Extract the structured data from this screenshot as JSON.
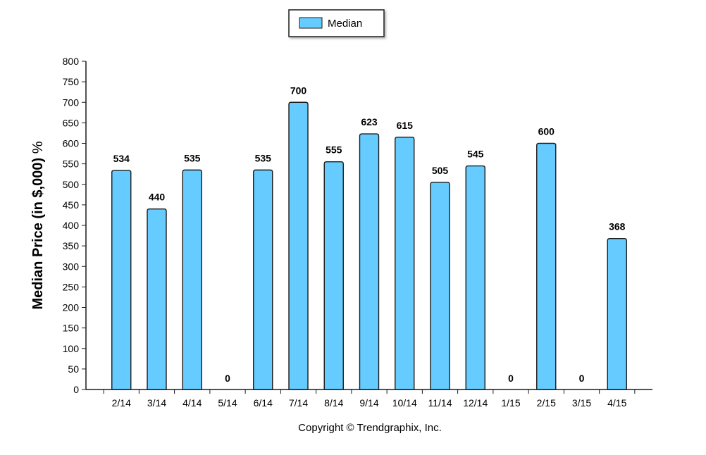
{
  "chart_data": {
    "type": "bar",
    "categories": [
      "2/14",
      "3/14",
      "4/14",
      "5/14",
      "6/14",
      "7/14",
      "8/14",
      "9/14",
      "10/14",
      "11/14",
      "12/14",
      "1/15",
      "2/15",
      "3/15",
      "4/15"
    ],
    "series": [
      {
        "name": "Median",
        "values": [
          534,
          440,
          535,
          0,
          535,
          700,
          555,
          623,
          615,
          505,
          545,
          0,
          600,
          0,
          368
        ]
      }
    ],
    "ylabel": "Median Price (in $,000)",
    "ylabel_unit": "%",
    "ylim": [
      0,
      800
    ],
    "yticks": [
      0,
      50,
      100,
      150,
      200,
      250,
      300,
      350,
      400,
      450,
      500,
      550,
      600,
      650,
      700,
      750,
      800
    ],
    "grid": false,
    "legend": {
      "position": "top-center",
      "label": "Median"
    },
    "bar_color": "#66ccff",
    "bar_edge_color": "#1a1a1a",
    "footer": "Copyright © Trendgraphix, Inc."
  }
}
